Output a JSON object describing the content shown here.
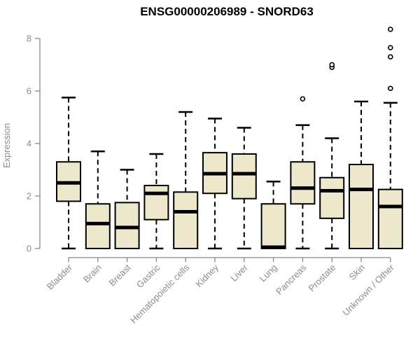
{
  "page": {
    "background": "#FFFFFF"
  },
  "chart_data": {
    "type": "boxplot",
    "title": "ENSG00000206989 - SNORD63",
    "ylabel": "Expression",
    "xlabel": "",
    "ylim": [
      0,
      8.5
    ],
    "yticks": [
      0,
      2,
      4,
      6,
      8
    ],
    "grid": false,
    "legend": false,
    "x_label_rotation_deg": 45,
    "categories": [
      "Bladder",
      "Brain",
      "Breast",
      "Gastric",
      "Hematopoietic cells",
      "Kidney",
      "Liver",
      "Lung",
      "Pancreas",
      "Prostate",
      "Skin",
      "Unknown / Other"
    ],
    "boxes": [
      {
        "category": "Bladder",
        "whisker_low": 0,
        "q1": 1.8,
        "median": 2.5,
        "q3": 3.3,
        "whisker_high": 5.75,
        "outliers": []
      },
      {
        "category": "Brain",
        "whisker_low": 0,
        "q1": 0,
        "median": 0.95,
        "q3": 1.7,
        "whisker_high": 3.7,
        "outliers": []
      },
      {
        "category": "Breast",
        "whisker_low": 0,
        "q1": 0,
        "median": 0.8,
        "q3": 1.75,
        "whisker_high": 3.0,
        "outliers": []
      },
      {
        "category": "Gastric",
        "whisker_low": 0,
        "q1": 1.1,
        "median": 2.1,
        "q3": 2.4,
        "whisker_high": 3.6,
        "outliers": []
      },
      {
        "category": "Hematopoietic cells",
        "whisker_low": 0,
        "q1": 0,
        "median": 1.4,
        "q3": 2.15,
        "whisker_high": 5.2,
        "outliers": []
      },
      {
        "category": "Kidney",
        "whisker_low": 0,
        "q1": 2.1,
        "median": 2.85,
        "q3": 3.65,
        "whisker_high": 4.95,
        "outliers": []
      },
      {
        "category": "Liver",
        "whisker_low": 0,
        "q1": 1.9,
        "median": 2.85,
        "q3": 3.6,
        "whisker_high": 4.6,
        "outliers": []
      },
      {
        "category": "Lung",
        "whisker_low": 0,
        "q1": 0,
        "median": 0.05,
        "q3": 1.7,
        "whisker_high": 2.55,
        "outliers": []
      },
      {
        "category": "Pancreas",
        "whisker_low": 0,
        "q1": 1.7,
        "median": 2.3,
        "q3": 3.3,
        "whisker_high": 4.7,
        "outliers": [
          5.7
        ]
      },
      {
        "category": "Prostate",
        "whisker_low": 0,
        "q1": 1.15,
        "median": 2.2,
        "q3": 2.7,
        "whisker_high": 4.2,
        "outliers": [
          6.9,
          7.0
        ]
      },
      {
        "category": "Skin",
        "whisker_low": 0,
        "q1": 0,
        "median": 2.25,
        "q3": 3.2,
        "whisker_high": 5.6,
        "outliers": []
      },
      {
        "category": "Unknown / Other",
        "whisker_low": 0,
        "q1": 0,
        "median": 1.6,
        "q3": 2.25,
        "whisker_high": 5.55,
        "outliers": [
          6.1,
          7.3,
          7.65,
          8.35
        ]
      }
    ],
    "colors": {
      "box_fill": "#EDE7CB",
      "box_border": "#000000",
      "median": "#000000",
      "whisker": "#000000",
      "outlier_stroke": "#000000",
      "outlier_fill": "#FFFFFF",
      "axis": "#888888",
      "tick_label": "#8C8C8C",
      "title": "#000000"
    }
  }
}
